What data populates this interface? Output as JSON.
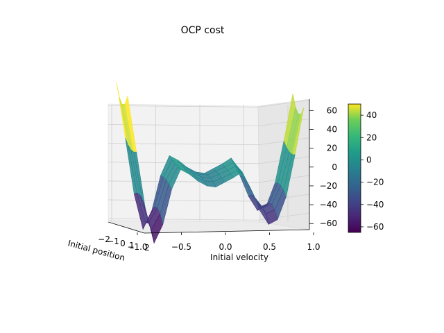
{
  "chart_data": {
    "type": "surface3d",
    "title": "OCP cost",
    "xlabel": "Initial position",
    "ylabel": "Initial velocity",
    "zlabel": "",
    "x_ticks": [
      "−2",
      "−1",
      "0",
      "1",
      "2"
    ],
    "y_ticks": [
      "−1.0",
      "−0.5",
      "0.0",
      "0.5",
      "1.0"
    ],
    "z_ticks": [
      "−60",
      "−40",
      "−20",
      "0",
      "20",
      "40",
      "60"
    ],
    "zlim": [
      -65,
      75
    ],
    "colormap": "viridis",
    "colorbar": {
      "ticks": [
        "−60",
        "−40",
        "−20",
        "0",
        "20",
        "40"
      ],
      "range": [
        -65,
        50
      ]
    },
    "velocity_profile": {
      "v": [
        -1.0,
        -0.9,
        -0.8,
        -0.7,
        -0.6,
        -0.5,
        -0.4,
        -0.3,
        -0.2,
        -0.1,
        0.0,
        0.1,
        0.2,
        0.3,
        0.4,
        0.5,
        0.6,
        0.7,
        0.8,
        0.9,
        1.0
      ],
      "cost": [
        68,
        20,
        -28,
        -58,
        -42,
        -12,
        5,
        1,
        -5,
        -9,
        -10,
        -6,
        -2,
        3,
        -12,
        -30,
        -42,
        -38,
        -18,
        18,
        58
      ]
    },
    "grid": true,
    "colorbar_position": "right"
  }
}
